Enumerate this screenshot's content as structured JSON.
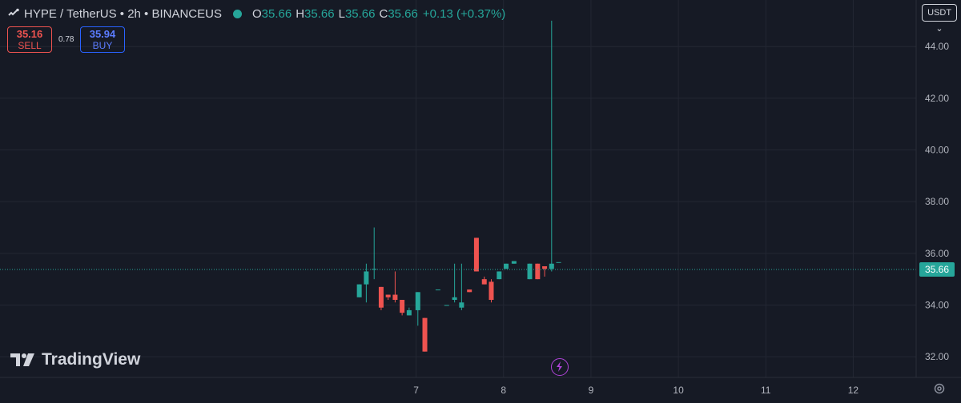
{
  "header": {
    "symbol": "HYPE / TetherUS • 2h • BINANCEUS",
    "open_label": "O",
    "open": "35.66",
    "high_label": "H",
    "high": "35.66",
    "low_label": "L",
    "low": "35.66",
    "close_label": "C",
    "close": "35.66",
    "change": "+0.13 (+0.37%)"
  },
  "trade": {
    "sell_price": "35.16",
    "sell_label": "SELL",
    "spread": "0.78",
    "buy_price": "35.94",
    "buy_label": "BUY"
  },
  "currency_button": "USDT",
  "brand": "TradingView",
  "colors": {
    "up": "#26a69a",
    "down": "#ef5350",
    "background": "#161a25",
    "grid": "#232733"
  },
  "chart_data": {
    "type": "candlestick",
    "ylim": [
      31.2,
      45.8
    ],
    "y_ticks": [
      "32.00",
      "34.00",
      "36.00",
      "38.00",
      "40.00",
      "42.00",
      "44.00"
    ],
    "x_ticks": [
      "7",
      "8",
      "9",
      "10",
      "11",
      "12"
    ],
    "x_tick_values": [
      7,
      8,
      9,
      10,
      11,
      12
    ],
    "xlim": [
      2.24,
      12.72
    ],
    "last_price": "35.66",
    "candles": [
      {
        "t": 6.35,
        "o": 34.3,
        "h": 34.8,
        "l": 34.3,
        "c": 34.8
      },
      {
        "t": 6.43,
        "o": 34.8,
        "h": 35.6,
        "l": 34.1,
        "c": 35.3
      },
      {
        "t": 6.52,
        "o": 35.4,
        "h": 37.0,
        "l": 35.0,
        "c": 35.4
      },
      {
        "t": 6.6,
        "o": 34.7,
        "h": 34.7,
        "l": 33.8,
        "c": 33.9
      },
      {
        "t": 6.68,
        "o": 34.4,
        "h": 34.4,
        "l": 34.2,
        "c": 34.3
      },
      {
        "t": 6.76,
        "o": 34.4,
        "h": 35.3,
        "l": 34.1,
        "c": 34.2
      },
      {
        "t": 6.84,
        "o": 34.2,
        "h": 34.2,
        "l": 33.6,
        "c": 33.7
      },
      {
        "t": 6.92,
        "o": 33.6,
        "h": 33.9,
        "l": 33.6,
        "c": 33.8
      },
      {
        "t": 7.02,
        "o": 33.8,
        "h": 34.5,
        "l": 33.2,
        "c": 34.5
      },
      {
        "t": 7.1,
        "o": 33.5,
        "h": 33.5,
        "l": 32.2,
        "c": 32.2
      },
      {
        "t": 7.25,
        "o": 34.6,
        "h": 34.6,
        "l": 34.6,
        "c": 34.6
      },
      {
        "t": 7.35,
        "o": 34.0,
        "h": 34.0,
        "l": 34.0,
        "c": 34.0
      },
      {
        "t": 7.44,
        "o": 34.2,
        "h": 35.6,
        "l": 34.1,
        "c": 34.3
      },
      {
        "t": 7.52,
        "o": 33.9,
        "h": 35.6,
        "l": 33.8,
        "c": 34.1
      },
      {
        "t": 7.61,
        "o": 34.6,
        "h": 34.6,
        "l": 34.5,
        "c": 34.5
      },
      {
        "t": 7.69,
        "o": 36.6,
        "h": 36.6,
        "l": 35.3,
        "c": 35.3
      },
      {
        "t": 7.78,
        "o": 35.0,
        "h": 35.1,
        "l": 34.8,
        "c": 34.8
      },
      {
        "t": 7.86,
        "o": 34.9,
        "h": 35.0,
        "l": 34.1,
        "c": 34.2
      },
      {
        "t": 7.95,
        "o": 35.0,
        "h": 35.3,
        "l": 35.0,
        "c": 35.3
      },
      {
        "t": 8.03,
        "o": 35.4,
        "h": 35.6,
        "l": 35.4,
        "c": 35.6
      },
      {
        "t": 8.12,
        "o": 35.6,
        "h": 35.7,
        "l": 35.6,
        "c": 35.7
      },
      {
        "t": 8.3,
        "o": 35.0,
        "h": 35.6,
        "l": 35.0,
        "c": 35.6
      },
      {
        "t": 8.39,
        "o": 35.6,
        "h": 35.6,
        "l": 35.0,
        "c": 35.0
      },
      {
        "t": 8.47,
        "o": 35.5,
        "h": 35.5,
        "l": 35.1,
        "c": 35.4
      },
      {
        "t": 8.55,
        "o": 35.4,
        "h": 45.0,
        "l": 35.3,
        "c": 35.6
      },
      {
        "t": 8.63,
        "o": 35.66,
        "h": 35.66,
        "l": 35.66,
        "c": 35.66
      }
    ]
  }
}
